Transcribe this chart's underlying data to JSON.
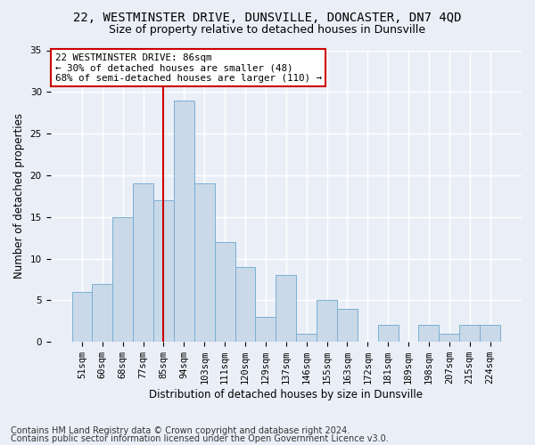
{
  "title": "22, WESTMINSTER DRIVE, DUNSVILLE, DONCASTER, DN7 4QD",
  "subtitle": "Size of property relative to detached houses in Dunsville",
  "xlabel": "Distribution of detached houses by size in Dunsville",
  "ylabel": "Number of detached properties",
  "bar_labels": [
    "51sqm",
    "60sqm",
    "68sqm",
    "77sqm",
    "85sqm",
    "94sqm",
    "103sqm",
    "111sqm",
    "120sqm",
    "129sqm",
    "137sqm",
    "146sqm",
    "155sqm",
    "163sqm",
    "172sqm",
    "181sqm",
    "189sqm",
    "198sqm",
    "207sqm",
    "215sqm",
    "224sqm"
  ],
  "bar_values": [
    6,
    7,
    15,
    19,
    17,
    29,
    19,
    12,
    9,
    3,
    8,
    1,
    5,
    4,
    0,
    2,
    0,
    2,
    1,
    2,
    2
  ],
  "bar_color": "#c9d9e8",
  "bar_edgecolor": "#7bafd4",
  "vline_x_index": 4,
  "vline_color": "#cc0000",
  "annotation_text": "22 WESTMINSTER DRIVE: 86sqm\n← 30% of detached houses are smaller (48)\n68% of semi-detached houses are larger (110) →",
  "annotation_box_edgecolor": "#cc0000",
  "annotation_box_facecolor": "#ffffff",
  "ylim": [
    0,
    35
  ],
  "yticks": [
    0,
    5,
    10,
    15,
    20,
    25,
    30,
    35
  ],
  "footnote1": "Contains HM Land Registry data © Crown copyright and database right 2024.",
  "footnote2": "Contains public sector information licensed under the Open Government Licence v3.0.",
  "bg_color": "#eaeff7",
  "plot_bg_color": "#eaeff7",
  "grid_color": "#ffffff",
  "title_fontsize": 10,
  "subtitle_fontsize": 9,
  "axis_label_fontsize": 8.5,
  "tick_fontsize": 7.5,
  "footnote_fontsize": 7
}
